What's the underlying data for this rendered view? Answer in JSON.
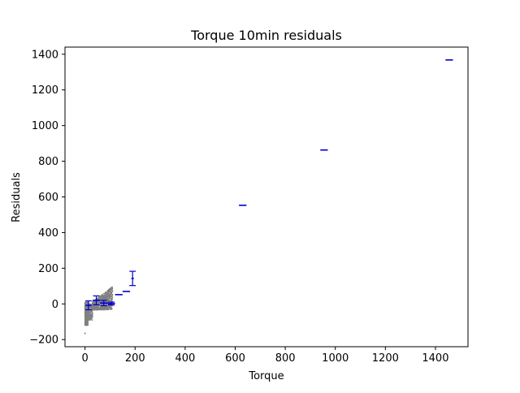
{
  "chart_data": {
    "type": "scatter",
    "title": "Torque 10min residuals",
    "xlabel": "Torque",
    "ylabel": "Residuals",
    "xlim": [
      -80,
      1530
    ],
    "ylim": [
      -240,
      1440
    ],
    "xticks": [
      0,
      200,
      400,
      600,
      800,
      1000,
      1200,
      1400
    ],
    "yticks": [
      -200,
      0,
      200,
      400,
      600,
      800,
      1000,
      1200,
      1400
    ],
    "xtick_labels": [
      "0",
      "200",
      "400",
      "600",
      "800",
      "1000",
      "1200",
      "1400"
    ],
    "ytick_labels": [
      "−200",
      "0",
      "200",
      "400",
      "600",
      "800",
      "1000",
      "1200",
      "1400"
    ],
    "grid": false,
    "series": [
      {
        "kind": "scatter",
        "color": "#808080",
        "x_range": [
          0,
          110
        ],
        "y_range": [
          -170,
          100
        ],
        "point_count": 1400
      },
      {
        "kind": "errorbar",
        "color": "#0000cc",
        "points": [
          {
            "x": 14,
            "y": -8,
            "xerr": 12,
            "yerr": 25
          },
          {
            "x": 45,
            "y": 20,
            "xerr": 15,
            "yerr": 25
          },
          {
            "x": 75,
            "y": 5,
            "xerr": 15,
            "yerr": 15
          },
          {
            "x": 105,
            "y": 2,
            "xerr": 15,
            "yerr": 8
          },
          {
            "x": 135,
            "y": 52,
            "xerr": 15,
            "yerr": 0
          },
          {
            "x": 165,
            "y": 70,
            "xerr": 15,
            "yerr": 0
          },
          {
            "x": 190,
            "y": 143,
            "xerr": 5,
            "yerr": 40
          },
          {
            "x": 630,
            "y": 553,
            "xerr": 15,
            "yerr": 0
          },
          {
            "x": 955,
            "y": 863,
            "xerr": 15,
            "yerr": 0
          },
          {
            "x": 1455,
            "y": 1368,
            "xerr": 15,
            "yerr": 0
          }
        ]
      }
    ]
  }
}
